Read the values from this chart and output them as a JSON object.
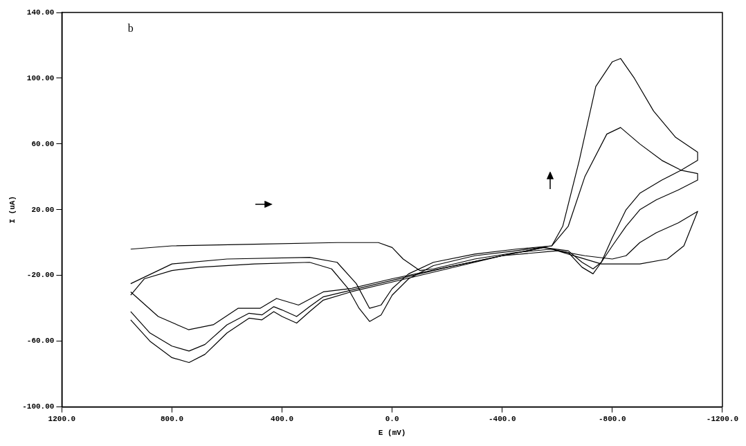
{
  "chart_data": {
    "type": "line",
    "xlabel": "E (mV)",
    "ylabel": "I (uA)",
    "annotations": [
      "b"
    ],
    "xlim": [
      1200,
      -1200
    ],
    "ylim": [
      -100,
      140
    ],
    "xticks": [
      {
        "value": 1200,
        "label": "1200.0"
      },
      {
        "value": 800,
        "label": "800.0"
      },
      {
        "value": 400,
        "label": "400.0"
      },
      {
        "value": 0,
        "label": "0.0"
      },
      {
        "value": -400,
        "label": "-400.0"
      },
      {
        "value": -800,
        "label": "-800.0"
      },
      {
        "value": -1200,
        "label": "-1200.0"
      }
    ],
    "yticks": [
      {
        "value": -100,
        "label": "-100.00"
      },
      {
        "value": -60,
        "label": "-60.00"
      },
      {
        "value": -20,
        "label": "-20.00"
      },
      {
        "value": 20,
        "label": "20.00"
      },
      {
        "value": 60,
        "label": "60.00"
      },
      {
        "value": 100,
        "label": "100.00"
      },
      {
        "value": 140,
        "label": "140.00"
      }
    ],
    "grid": false,
    "legend": false,
    "marker": "none",
    "line_style": "solid",
    "series": [
      {
        "color": "#000000",
        "x": [
          950,
          800,
          500,
          200,
          50,
          0,
          -40,
          -100,
          -150,
          -300,
          -450,
          -580,
          -680,
          -760,
          -900,
          -1000,
          -1060,
          -1110,
          -1040,
          -960,
          -900,
          -850,
          -800,
          -700,
          -600,
          -400,
          -200,
          0,
          150,
          250,
          340,
          420,
          480,
          560,
          650,
          740,
          850,
          950
        ],
        "values": [
          -4,
          -2,
          -1,
          0,
          0,
          -3,
          -10,
          -17,
          -16,
          -10,
          -6,
          -4,
          -9,
          -13,
          -13,
          -10,
          -2,
          19,
          12,
          6,
          0,
          -8,
          -10,
          -8,
          -5,
          -8,
          -15,
          -22,
          -28,
          -30,
          -38,
          -34,
          -40,
          -40,
          -50,
          -53,
          -45,
          -30
        ]
      },
      {
        "color": "#000000",
        "x": [
          950,
          800,
          600,
          300,
          200,
          130,
          82,
          40,
          0,
          -60,
          -150,
          -300,
          -450,
          -580,
          -640,
          -700,
          -780,
          -830,
          -900,
          -980,
          -1050,
          -1110,
          -1110,
          -1040,
          -960,
          -900,
          -850,
          -800,
          -760,
          -730,
          -690,
          -640,
          -550,
          -400,
          -200,
          0,
          150,
          250,
          300,
          347,
          400,
          430,
          473,
          520,
          600,
          680,
          738,
          800,
          880,
          950
        ],
        "values": [
          -25,
          -13,
          -10,
          -9,
          -12,
          -25,
          -40,
          -38,
          -28,
          -19,
          -12,
          -7,
          -4,
          -2,
          10,
          40,
          66,
          70,
          60,
          50,
          44,
          42,
          38,
          32,
          26,
          20,
          10,
          -2,
          -12,
          -16,
          -12,
          -5,
          -3,
          -8,
          -15,
          -23,
          -29,
          -33,
          -39,
          -45,
          -41,
          -39,
          -44,
          -43,
          -50,
          -62,
          -66,
          -63,
          -55,
          -42
        ]
      },
      {
        "color": "#000000",
        "x": [
          950,
          900,
          800,
          700,
          500,
          300,
          220,
          160,
          120,
          82,
          40,
          0,
          -60,
          -150,
          -300,
          -450,
          -580,
          -620,
          -680,
          -740,
          -800,
          -830,
          -880,
          -950,
          -1030,
          -1110,
          -1110,
          -1050,
          -980,
          -900,
          -850,
          -800,
          -760,
          -730,
          -690,
          -640,
          -550,
          -400,
          -200,
          0,
          150,
          250,
          300,
          347,
          400,
          430,
          473,
          520,
          600,
          680,
          738,
          800,
          880,
          950
        ],
        "values": [
          -32,
          -22,
          -17,
          -15,
          -13,
          -12,
          -16,
          -28,
          -40,
          -48,
          -44,
          -32,
          -22,
          -14,
          -8,
          -5,
          -2,
          10,
          50,
          95,
          110,
          112,
          100,
          80,
          64,
          55,
          50,
          44,
          38,
          30,
          20,
          3,
          -12,
          -19,
          -15,
          -6,
          -3,
          -8,
          -16,
          -24,
          -30,
          -35,
          -42,
          -49,
          -45,
          -42,
          -47,
          -46,
          -55,
          -68,
          -73,
          -70,
          -60,
          -47
        ]
      }
    ]
  }
}
